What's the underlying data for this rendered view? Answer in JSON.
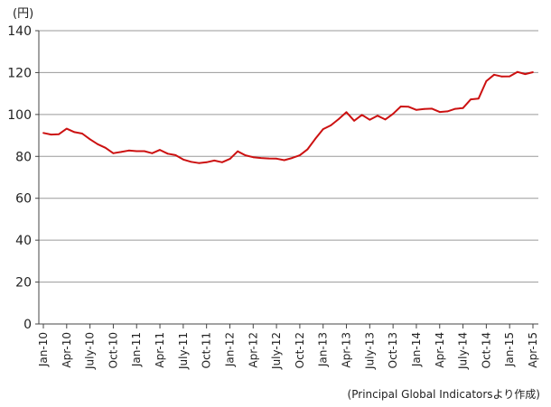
{
  "chart_data": {
    "type": "line",
    "unit": "(円)",
    "source": "(Principal Global Indicatorsより作成)",
    "ylim": [
      0,
      140
    ],
    "yticks": [
      0,
      20,
      40,
      60,
      80,
      100,
      120,
      140
    ],
    "grid": true,
    "line_color": "#cc1111",
    "xtick_labels": [
      "Jan-10",
      "Apr-10",
      "July-10",
      "Oct-10",
      "Jan-11",
      "Apr-11",
      "July-11",
      "Oct-11",
      "Jan-12",
      "Apr-12",
      "July-12",
      "Oct-12",
      "Jan-13",
      "Apr-13",
      "July-13",
      "Oct-13",
      "Jan-14",
      "Apr-14",
      "July-14",
      "Oct-14",
      "Jan-15",
      "Apr-15"
    ],
    "series": [
      {
        "values": [
          91.2,
          90.4,
          90.6,
          93.2,
          91.6,
          90.9,
          88.2,
          85.8,
          84.1,
          81.5,
          82.1,
          82.8,
          82.5,
          82.5,
          81.5,
          83.1,
          81.3,
          80.6,
          78.5,
          77.4,
          76.8,
          77.2,
          78.0,
          77.2,
          78.8,
          82.4,
          80.5,
          79.6,
          79.2,
          79.0,
          78.9,
          78.2,
          79.2,
          80.5,
          83.4,
          88.4,
          93.0,
          94.8,
          97.8,
          101.1,
          97.0,
          99.8,
          97.5,
          99.4,
          97.6,
          100.3,
          103.8,
          103.7,
          102.2,
          102.6,
          102.8,
          101.2,
          101.5,
          102.7,
          103.1,
          107.2,
          107.6,
          115.9,
          119.0,
          118.1,
          118.2,
          120.3,
          119.3,
          120.2
        ]
      }
    ]
  }
}
